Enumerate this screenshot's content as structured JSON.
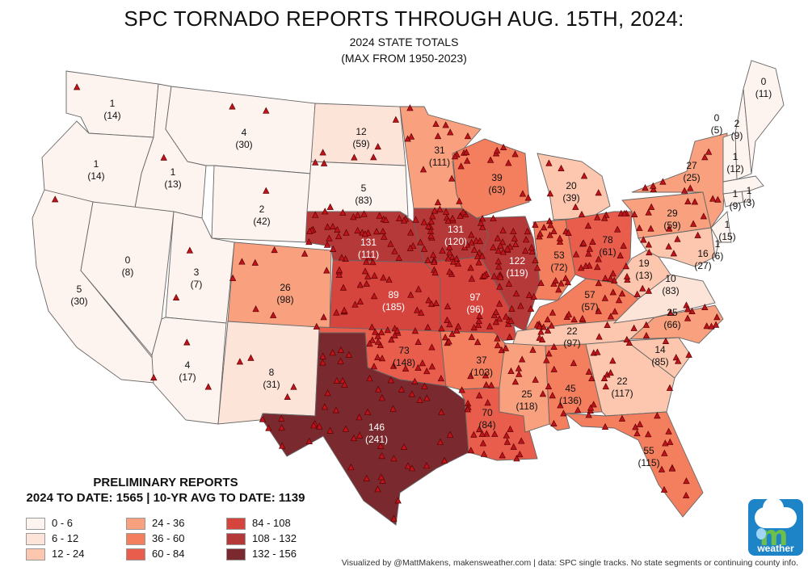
{
  "header": {
    "title": "SPC TORNADO REPORTS THROUGH AUG. 15TH, 2024:",
    "subtitle1": "2024 STATE TOTALS",
    "subtitle2": "(MAX FROM 1950-2023)"
  },
  "legend": {
    "title1": "PRELIMINARY REPORTS",
    "title2": "2024 TO DATE: 1565 | 10-YR AVG TO DATE: 1139",
    "bins": [
      {
        "label": "0 - 6",
        "color": "#fdf3ef"
      },
      {
        "label": "6 - 12",
        "color": "#fde4d8"
      },
      {
        "label": "12 - 24",
        "color": "#fcc7ae"
      },
      {
        "label": "24 - 36",
        "color": "#f9a17f"
      },
      {
        "label": "36 - 60",
        "color": "#f47f5e"
      },
      {
        "label": "60 - 84",
        "color": "#e85d4c"
      },
      {
        "label": "84 - 108",
        "color": "#d5453e"
      },
      {
        "label": "108 - 132",
        "color": "#b63939"
      },
      {
        "label": "132 - 156",
        "color": "#7a2a2e"
      }
    ]
  },
  "states": [
    {
      "name": "Washington",
      "value": "1",
      "max": "(14)"
    },
    {
      "name": "Oregon",
      "value": "1",
      "max": "(14)"
    },
    {
      "name": "California",
      "value": "5",
      "max": "(30)"
    },
    {
      "name": "Idaho",
      "value": "1",
      "max": "(13)"
    },
    {
      "name": "Nevada",
      "value": "0",
      "max": "(8)"
    },
    {
      "name": "Montana",
      "value": "4",
      "max": "(30)"
    },
    {
      "name": "Wyoming",
      "value": "2",
      "max": "(42)"
    },
    {
      "name": "Utah",
      "value": "3",
      "max": "(7)"
    },
    {
      "name": "Arizona",
      "value": "4",
      "max": "(17)"
    },
    {
      "name": "Colorado",
      "value": "26",
      "max": "(98)"
    },
    {
      "name": "New Mexico",
      "value": "8",
      "max": "(31)"
    },
    {
      "name": "North Dakota",
      "value": "12",
      "max": "(59)"
    },
    {
      "name": "South Dakota",
      "value": "5",
      "max": "(83)"
    },
    {
      "name": "Nebraska",
      "value": "131",
      "max": "(111)"
    },
    {
      "name": "Kansas",
      "value": "89",
      "max": "(185)"
    },
    {
      "name": "Oklahoma",
      "value": "73",
      "max": "(148)"
    },
    {
      "name": "Texas",
      "value": "146",
      "max": "(241)"
    },
    {
      "name": "Minnesota",
      "value": "31",
      "max": "(111)"
    },
    {
      "name": "Iowa",
      "value": "131",
      "max": "(120)"
    },
    {
      "name": "Missouri",
      "value": "97",
      "max": "(96)"
    },
    {
      "name": "Arkansas",
      "value": "37",
      "max": "(103)"
    },
    {
      "name": "Louisiana",
      "value": "70",
      "max": "(84)"
    },
    {
      "name": "Wisconsin",
      "value": "39",
      "max": "(63)"
    },
    {
      "name": "Illinois",
      "value": "122",
      "max": "(119)"
    },
    {
      "name": "Michigan",
      "value": "20",
      "max": "(39)"
    },
    {
      "name": "Indiana",
      "value": "53",
      "max": "(72)"
    },
    {
      "name": "Ohio",
      "value": "78",
      "max": "(61)"
    },
    {
      "name": "Kentucky",
      "value": "57",
      "max": "(57)"
    },
    {
      "name": "Tennessee",
      "value": "22",
      "max": "(97)"
    },
    {
      "name": "Mississippi",
      "value": "25",
      "max": "(118)"
    },
    {
      "name": "Alabama",
      "value": "45",
      "max": "(136)"
    },
    {
      "name": "Georgia",
      "value": "22",
      "max": "(117)"
    },
    {
      "name": "Florida",
      "value": "55",
      "max": "(115)"
    },
    {
      "name": "South Carolina",
      "value": "14",
      "max": "(85)"
    },
    {
      "name": "North Carolina",
      "value": "25",
      "max": "(66)"
    },
    {
      "name": "Virginia",
      "value": "10",
      "max": "(83)"
    },
    {
      "name": "West Virginia",
      "value": "19",
      "max": "(13)"
    },
    {
      "name": "Pennsylvania",
      "value": "29",
      "max": "(59)"
    },
    {
      "name": "New York",
      "value": "27",
      "max": "(25)"
    },
    {
      "name": "Maryland",
      "value": "16",
      "max": "(27)"
    },
    {
      "name": "Delaware",
      "value": "1",
      "max": "(6)"
    },
    {
      "name": "New Jersey",
      "value": "1",
      "max": "(15)"
    },
    {
      "name": "Connecticut",
      "value": "1",
      "max": "(9)"
    },
    {
      "name": "Rhode Island",
      "value": "1",
      "max": "(3)"
    },
    {
      "name": "Massachusetts",
      "value": "1",
      "max": "(12)"
    },
    {
      "name": "Vermont",
      "value": "0",
      "max": "(5)"
    },
    {
      "name": "New Hampshire",
      "value": "2",
      "max": "(9)"
    },
    {
      "name": "Maine",
      "value": "0",
      "max": "(11)"
    }
  ],
  "credit": "Visualized by @MattMakens, makensweather.com | data: SPC single tracks. No state segments or continuing county info.",
  "logo": {
    "wordmark": "weather"
  }
}
